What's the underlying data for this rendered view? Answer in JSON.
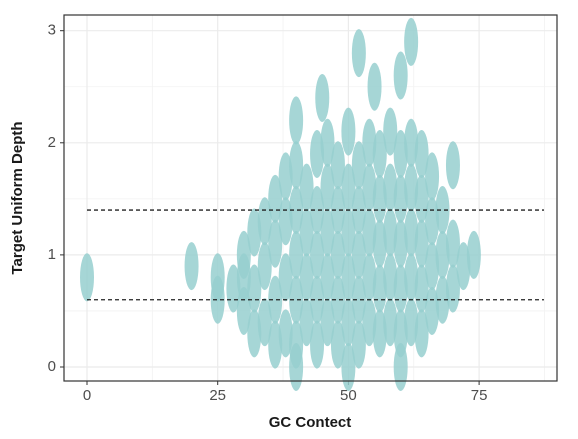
{
  "chart_data": {
    "type": "scatter",
    "x_label": "GC Contect",
    "y_label": "Target Uniform Depth",
    "color": "#96cfcf",
    "xlim": [
      -4.4,
      89.9
    ],
    "ylim": [
      -0.125,
      3.14
    ],
    "xticks": [
      0,
      25,
      50,
      75
    ],
    "yticks": [
      0,
      1,
      2,
      3
    ],
    "xminorticks": [
      12.5,
      37.5,
      62.5,
      87.5
    ],
    "yminorticks": [
      0.5,
      1.5,
      2.5
    ],
    "grid": true,
    "hlines": [
      0.6,
      1.4
    ],
    "x": [
      30,
      30,
      30,
      32,
      32,
      32,
      34,
      34,
      34,
      36,
      36,
      36,
      36,
      38,
      38,
      38,
      38,
      40,
      40,
      40,
      40,
      40,
      42,
      42,
      42,
      42,
      44,
      44,
      44,
      44,
      44,
      46,
      46,
      46,
      46,
      46,
      48,
      48,
      48,
      48,
      48,
      50,
      50,
      50,
      50,
      50,
      52,
      52,
      52,
      52,
      52,
      54,
      54,
      54,
      54,
      54,
      56,
      56,
      56,
      56,
      56,
      58,
      58,
      58,
      58,
      58,
      60,
      60,
      60,
      60,
      60,
      62,
      62,
      62,
      62,
      62,
      64,
      64,
      64,
      64,
      64,
      66,
      66,
      66,
      66,
      68,
      68,
      68,
      70,
      70,
      72,
      74,
      28,
      45,
      55,
      60,
      52,
      62,
      40,
      70,
      0,
      20,
      25,
      25,
      50,
      40,
      60
    ],
    "y": [
      0.5,
      0.8,
      1.0,
      0.3,
      0.7,
      1.2,
      0.4,
      0.9,
      1.3,
      0.2,
      0.6,
      1.1,
      1.5,
      0.3,
      0.8,
      1.3,
      1.7,
      0.2,
      0.6,
      1.0,
      1.4,
      1.8,
      0.4,
      0.8,
      1.2,
      1.6,
      0.2,
      0.6,
      1.0,
      1.4,
      1.9,
      0.4,
      0.8,
      1.2,
      1.6,
      2.0,
      0.2,
      0.6,
      1.0,
      1.4,
      1.8,
      0.4,
      0.8,
      1.2,
      1.6,
      2.1,
      0.2,
      0.6,
      1.0,
      1.4,
      1.8,
      0.4,
      0.8,
      1.2,
      1.6,
      2.0,
      0.3,
      0.7,
      1.1,
      1.5,
      1.9,
      0.4,
      0.8,
      1.2,
      1.6,
      2.1,
      0.3,
      0.7,
      1.1,
      1.5,
      1.9,
      0.4,
      0.8,
      1.2,
      1.6,
      2.0,
      0.3,
      0.7,
      1.1,
      1.5,
      1.9,
      0.5,
      0.9,
      1.3,
      1.7,
      0.6,
      1.0,
      1.4,
      0.7,
      1.1,
      0.9,
      1.0,
      0.7,
      2.4,
      2.5,
      2.6,
      2.8,
      2.9,
      2.2,
      1.8,
      0.8,
      0.9,
      0.6,
      0.8,
      0.0,
      0.0,
      0.0
    ]
  }
}
